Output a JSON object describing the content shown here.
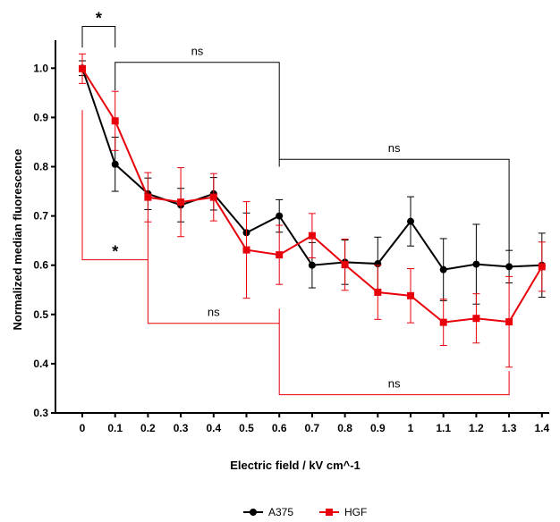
{
  "chart_data": {
    "type": "line",
    "xlabel": "Electric field / kV cm^-1",
    "ylabel": "Normalized median fluorescence",
    "x": [
      0,
      0.1,
      0.2,
      0.3,
      0.4,
      0.5,
      0.6,
      0.7,
      0.8,
      0.9,
      1,
      1.1,
      1.2,
      1.3,
      1.4
    ],
    "x_tick_labels": [
      "0",
      "0.1",
      "0.2",
      "0.3",
      "0.4",
      "0.5",
      "0.6",
      "0.7",
      "0.8",
      "0.9",
      "1",
      "1.1",
      "1.2",
      "1.3",
      "1.4"
    ],
    "y_ticks": [
      0.3,
      0.4,
      0.5,
      0.6,
      0.7,
      0.8,
      0.9,
      1.0
    ],
    "y_tick_labels": [
      "0.3",
      "0.4",
      "0.5",
      "0.6",
      "0.7",
      "0.8",
      "0.9",
      "1.0"
    ],
    "ylim": [
      0.3,
      1.05
    ],
    "grid": false,
    "legend_position": "bottom-center",
    "series": [
      {
        "name": "A375",
        "color": "#000000",
        "marker": "circle",
        "values": [
          1.0,
          0.805,
          0.745,
          0.722,
          0.745,
          0.666,
          0.7,
          0.6,
          0.606,
          0.603,
          0.689,
          0.591,
          0.602,
          0.597,
          0.6
        ],
        "error": [
          0.015,
          0.055,
          0.032,
          0.034,
          0.033,
          0.04,
          0.033,
          0.046,
          0.045,
          0.054,
          0.05,
          0.063,
          0.081,
          0.033,
          0.065
        ]
      },
      {
        "name": "HGF",
        "color": "#e8000b",
        "marker": "square",
        "values": [
          0.999,
          0.893,
          0.738,
          0.728,
          0.738,
          0.631,
          0.621,
          0.66,
          0.601,
          0.545,
          0.538,
          0.484,
          0.492,
          0.485,
          0.597
        ],
        "error": [
          0.03,
          0.06,
          0.05,
          0.07,
          0.048,
          0.098,
          0.06,
          0.045,
          0.052,
          0.055,
          0.055,
          0.047,
          0.05,
          0.092,
          0.05
        ]
      }
    ],
    "annotations": [
      {
        "series": "A375",
        "label": "*",
        "x_from": 0,
        "x_to": 0.1,
        "level": 1.085,
        "drop_from": 1.042,
        "drop_to": 1.042
      },
      {
        "series": "A375",
        "label": "ns",
        "x_from": 0.1,
        "x_to": 0.6,
        "level": 1.012,
        "drop_from": 0.955,
        "drop_to": 0.8
      },
      {
        "series": "A375",
        "label": "ns",
        "x_from": 0.6,
        "x_to": 1.3,
        "level": 0.815,
        "drop_from": 0.815,
        "drop_to": 0.63
      },
      {
        "series": "HGF",
        "label": "*",
        "x_from": 0,
        "x_to": 0.2,
        "level": 0.611,
        "drop_from": 0.915,
        "drop_to": 0.695
      },
      {
        "series": "HGF",
        "label": "ns",
        "x_from": 0.2,
        "x_to": 0.6,
        "level": 0.482,
        "drop_from": 0.611,
        "drop_to": 0.512
      },
      {
        "series": "HGF",
        "label": "ns",
        "x_from": 0.6,
        "x_to": 1.3,
        "level": 0.337,
        "drop_from": 0.482,
        "drop_to": 0.385
      }
    ]
  }
}
